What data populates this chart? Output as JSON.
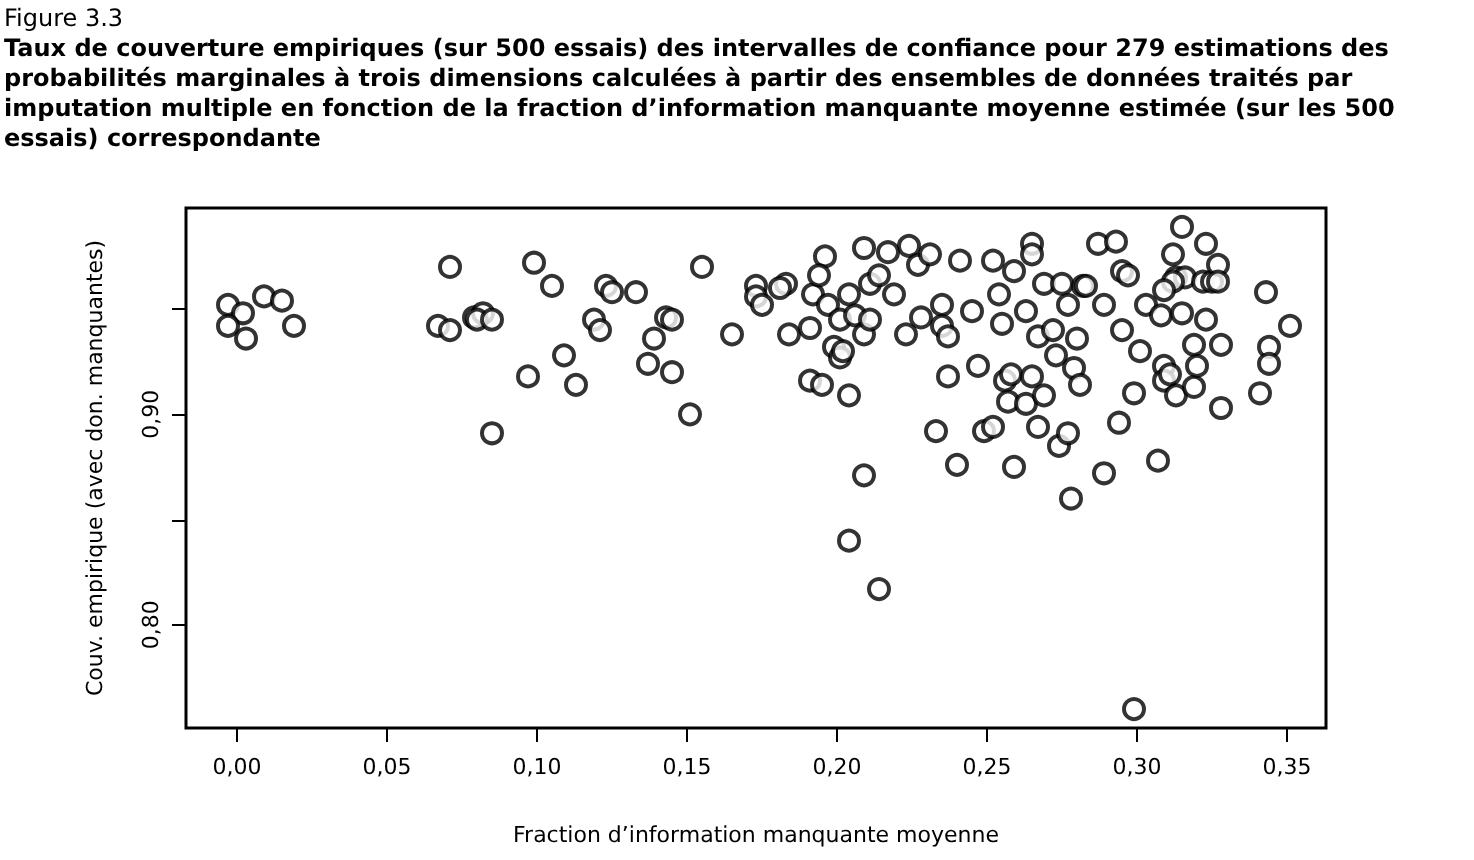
{
  "chart_data": {
    "type": "scatter",
    "title": "Figure 3.3",
    "subtitle": "Taux de couverture empiriques (sur 500 essais) des intervalles de confiance pour 279 estimations des probabilités marginales à trois dimensions calculées à partir des ensembles de données traités par imputation multiple en fonction de la fraction d’information manquante moyenne estimée (sur les 500 essais) correspondante",
    "xlabel": "Fraction d’information manquante moyenne",
    "ylabel": "Couv. empirique (avec don. manquantes)",
    "xlim": [
      -0.017,
      0.363
    ],
    "ylim": [
      0.751,
      0.998
    ],
    "xticks": [
      {
        "value": 0,
        "label": "0,00"
      },
      {
        "value": 0.05,
        "label": "0,05"
      },
      {
        "value": 0.1,
        "label": "0,10"
      },
      {
        "value": 0.15,
        "label": "0,15"
      },
      {
        "value": 0.2,
        "label": "0,20"
      },
      {
        "value": 0.25,
        "label": "0,25"
      },
      {
        "value": 0.3,
        "label": "0,30"
      },
      {
        "value": 0.35,
        "label": "0,35"
      }
    ],
    "yticks": [
      {
        "value": 0.8,
        "label": "0,80"
      },
      {
        "value": 0.85,
        "label": null
      },
      {
        "value": 0.9,
        "label": "0,90"
      },
      {
        "value": 0.95,
        "label": null
      }
    ],
    "grid": false,
    "marker": "circle",
    "series": [
      {
        "color": "#000000",
        "x": [
          -0.003,
          0.002,
          0.009,
          0.015,
          -0.003,
          0.003,
          0.019,
          0.071,
          0.067,
          0.071,
          0.079,
          0.082,
          0.08,
          0.085,
          0.097,
          0.085,
          0.099,
          0.105,
          0.123,
          0.125,
          0.133,
          0.155,
          0.119,
          0.121,
          0.109,
          0.113,
          0.143,
          0.145,
          0.139,
          0.137,
          0.145,
          0.151,
          0.165,
          0.173,
          0.173,
          0.175,
          0.183,
          0.181,
          0.184,
          0.191,
          0.192,
          0.191,
          0.195,
          0.196,
          0.194,
          0.197,
          0.199,
          0.201,
          0.202,
          0.204,
          0.201,
          0.204,
          0.206,
          0.209,
          0.209,
          0.209,
          0.204,
          0.214,
          0.211,
          0.211,
          0.214,
          0.217,
          0.219,
          0.223,
          0.224,
          0.227,
          0.228,
          0.231,
          0.233,
          0.235,
          0.235,
          0.237,
          0.237,
          0.24,
          0.241,
          0.245,
          0.247,
          0.249,
          0.252,
          0.252,
          0.254,
          0.255,
          0.256,
          0.258,
          0.257,
          0.259,
          0.259,
          0.263,
          0.263,
          0.265,
          0.265,
          0.265,
          0.267,
          0.267,
          0.269,
          0.269,
          0.272,
          0.273,
          0.274,
          0.275,
          0.277,
          0.278,
          0.279,
          0.281,
          0.28,
          0.277,
          0.282,
          0.283,
          0.287,
          0.289,
          0.289,
          0.293,
          0.294,
          0.295,
          0.295,
          0.297,
          0.299,
          0.299,
          0.301,
          0.303,
          0.307,
          0.308,
          0.309,
          0.309,
          0.311,
          0.312,
          0.313,
          0.313,
          0.315,
          0.316,
          0.315,
          0.319,
          0.319,
          0.32,
          0.323,
          0.322,
          0.323,
          0.325,
          0.327,
          0.328,
          0.328,
          0.327,
          0.341,
          0.343,
          0.344,
          0.344,
          0.312,
          0.309,
          0.351
        ],
        "values": [
          0.952,
          0.948,
          0.956,
          0.954,
          0.942,
          0.936,
          0.942,
          0.97,
          0.942,
          0.94,
          0.946,
          0.948,
          0.945,
          0.945,
          0.918,
          0.891,
          0.972,
          0.961,
          0.961,
          0.958,
          0.958,
          0.97,
          0.945,
          0.94,
          0.928,
          0.914,
          0.946,
          0.945,
          0.936,
          0.924,
          0.92,
          0.9,
          0.938,
          0.961,
          0.956,
          0.952,
          0.962,
          0.96,
          0.938,
          0.941,
          0.957,
          0.916,
          0.914,
          0.975,
          0.966,
          0.952,
          0.932,
          0.927,
          0.93,
          0.909,
          0.945,
          0.957,
          0.947,
          0.979,
          0.938,
          0.871,
          0.84,
          0.817,
          0.945,
          0.962,
          0.966,
          0.977,
          0.957,
          0.938,
          0.98,
          0.971,
          0.946,
          0.976,
          0.892,
          0.952,
          0.942,
          0.918,
          0.937,
          0.876,
          0.973,
          0.949,
          0.923,
          0.892,
          0.894,
          0.973,
          0.957,
          0.943,
          0.916,
          0.919,
          0.906,
          0.875,
          0.968,
          0.949,
          0.905,
          0.918,
          0.981,
          0.976,
          0.894,
          0.937,
          0.909,
          0.962,
          0.94,
          0.928,
          0.885,
          0.962,
          0.891,
          0.86,
          0.922,
          0.914,
          0.936,
          0.952,
          0.961,
          0.961,
          0.981,
          0.872,
          0.952,
          0.982,
          0.896,
          0.968,
          0.94,
          0.966,
          0.76,
          0.91,
          0.93,
          0.952,
          0.878,
          0.947,
          0.923,
          0.916,
          0.919,
          0.976,
          0.965,
          0.909,
          0.989,
          0.965,
          0.948,
          0.933,
          0.913,
          0.923,
          0.981,
          0.963,
          0.945,
          0.963,
          0.971,
          0.933,
          0.903,
          0.963,
          0.91,
          0.958,
          0.932,
          0.924,
          0.963,
          0.959,
          0.942
        ]
      }
    ]
  }
}
